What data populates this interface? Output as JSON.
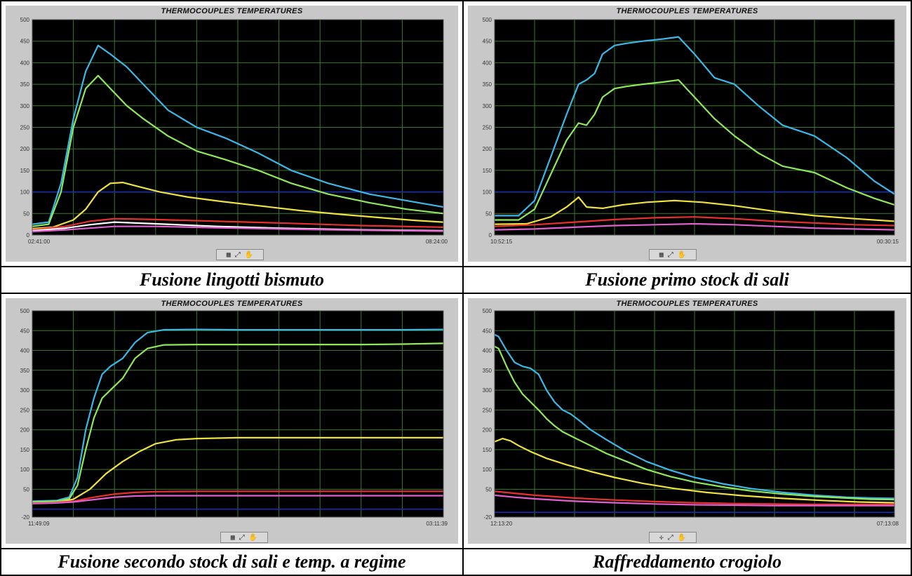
{
  "captions": [
    "Fusione lingotti bismuto",
    "Fusione primo stock di sali",
    "Fusione secondo stock di sali e temp. a regime",
    "Raffreddamento crogiolo"
  ],
  "colors": {
    "cyan": "#3ab8e8",
    "green": "#8ee85a",
    "yellow": "#f0e040",
    "red": "#e83030",
    "magenta": "#e060d0",
    "white": "#ffffff",
    "blue": "#1030c0",
    "grid": "#3a7a2a",
    "plot_bg": "#000000"
  },
  "controls_icon": "cursor-palette-icon",
  "chart_data": [
    {
      "type": "line",
      "title": "THERMOCOUPLES TEMPERATURES",
      "ylim": [
        0,
        500
      ],
      "yticks": [
        0,
        50,
        100,
        150,
        200,
        250,
        300,
        350,
        400,
        450,
        500
      ],
      "xlim": [
        0,
        100
      ],
      "x_start_label": "02:41:00",
      "x_end_label": "08:24:00",
      "grid": true,
      "reference_line": 100,
      "series": [
        {
          "color": "cyan",
          "x": [
            0,
            4,
            7,
            10,
            13,
            16,
            19,
            23,
            27,
            33,
            40,
            47,
            55,
            63,
            72,
            82,
            91,
            100
          ],
          "values": [
            25,
            30,
            120,
            270,
            380,
            440,
            420,
            390,
            350,
            290,
            250,
            225,
            190,
            150,
            120,
            95,
            80,
            65
          ]
        },
        {
          "color": "green",
          "x": [
            0,
            4,
            7,
            10,
            13,
            16,
            19,
            23,
            27,
            33,
            40,
            47,
            55,
            63,
            72,
            82,
            91,
            100
          ],
          "values": [
            20,
            25,
            100,
            250,
            340,
            370,
            340,
            300,
            270,
            230,
            195,
            175,
            150,
            120,
            95,
            75,
            60,
            50
          ]
        },
        {
          "color": "yellow",
          "x": [
            0,
            5,
            10,
            13,
            16,
            19,
            22,
            26,
            31,
            38,
            46,
            55,
            65,
            75,
            85,
            93,
            100
          ],
          "values": [
            15,
            18,
            35,
            60,
            100,
            120,
            122,
            112,
            100,
            88,
            78,
            68,
            57,
            48,
            40,
            34,
            30
          ]
        },
        {
          "color": "red",
          "x": [
            0,
            8,
            14,
            20,
            30,
            45,
            60,
            80,
            100
          ],
          "values": [
            12,
            20,
            32,
            38,
            36,
            32,
            28,
            22,
            18
          ]
        },
        {
          "color": "white",
          "x": [
            0,
            8,
            14,
            20,
            30,
            45,
            60,
            80,
            100
          ],
          "values": [
            10,
            16,
            24,
            30,
            26,
            20,
            16,
            12,
            10
          ]
        },
        {
          "color": "magenta",
          "x": [
            0,
            8,
            14,
            20,
            30,
            45,
            60,
            80,
            100
          ],
          "values": [
            8,
            12,
            16,
            20,
            20,
            17,
            14,
            11,
            9
          ]
        }
      ]
    },
    {
      "type": "line",
      "title": "THERMOCOUPLES TEMPERATURES",
      "ylim": [
        0,
        500
      ],
      "yticks": [
        0,
        50,
        100,
        150,
        200,
        250,
        300,
        350,
        400,
        450,
        500
      ],
      "xlim": [
        0,
        100
      ],
      "x_start_label": "10:52:15",
      "x_end_label": "00:30:15",
      "grid": true,
      "reference_line": 100,
      "series": [
        {
          "color": "cyan",
          "x": [
            0,
            6,
            10,
            14,
            18,
            21,
            23,
            25,
            27,
            30,
            33,
            37,
            42,
            46,
            50,
            55,
            60,
            66,
            72,
            80,
            88,
            95,
            100
          ],
          "values": [
            45,
            45,
            80,
            180,
            280,
            350,
            360,
            375,
            420,
            440,
            445,
            450,
            455,
            460,
            420,
            365,
            350,
            300,
            255,
            230,
            180,
            125,
            95
          ]
        },
        {
          "color": "green",
          "x": [
            0,
            6,
            10,
            14,
            18,
            21,
            23,
            25,
            27,
            30,
            33,
            37,
            42,
            46,
            50,
            55,
            60,
            66,
            72,
            80,
            88,
            95,
            100
          ],
          "values": [
            35,
            35,
            60,
            140,
            220,
            260,
            255,
            280,
            320,
            340,
            345,
            350,
            355,
            360,
            320,
            270,
            230,
            190,
            160,
            145,
            110,
            85,
            70
          ]
        },
        {
          "color": "yellow",
          "x": [
            0,
            8,
            14,
            18,
            20,
            21,
            23,
            27,
            32,
            38,
            45,
            52,
            60,
            70,
            80,
            90,
            100
          ],
          "values": [
            25,
            26,
            42,
            65,
            80,
            88,
            65,
            62,
            70,
            76,
            80,
            76,
            68,
            55,
            45,
            38,
            32
          ]
        },
        {
          "color": "red",
          "x": [
            0,
            10,
            20,
            30,
            40,
            50,
            60,
            70,
            80,
            90,
            100
          ],
          "values": [
            20,
            24,
            30,
            36,
            40,
            42,
            38,
            32,
            28,
            24,
            22
          ]
        },
        {
          "color": "magenta",
          "x": [
            0,
            10,
            20,
            30,
            40,
            50,
            60,
            70,
            80,
            90,
            100
          ],
          "values": [
            12,
            14,
            18,
            22,
            24,
            26,
            24,
            20,
            16,
            14,
            12
          ]
        }
      ]
    },
    {
      "type": "line",
      "title": "THERMOCOUPLES TEMPERATURES",
      "ylim": [
        -20,
        500
      ],
      "yticks": [
        -20,
        50,
        100,
        150,
        200,
        250,
        300,
        350,
        400,
        450,
        500
      ],
      "xlim": [
        0,
        100
      ],
      "x_start_label": "11:49:09",
      "x_end_label": "03:11:39",
      "grid": true,
      "reference_line": 0,
      "series": [
        {
          "color": "cyan",
          "x": [
            0,
            6,
            9,
            11,
            13,
            15,
            17,
            19,
            22,
            25,
            28,
            32,
            40,
            50,
            60,
            70,
            80,
            90,
            100
          ],
          "values": [
            20,
            22,
            30,
            80,
            200,
            280,
            340,
            360,
            380,
            420,
            445,
            452,
            453,
            452,
            452,
            452,
            452,
            452,
            453
          ]
        },
        {
          "color": "green",
          "x": [
            0,
            6,
            9,
            11,
            13,
            15,
            17,
            19,
            22,
            25,
            28,
            32,
            40,
            50,
            60,
            70,
            80,
            90,
            100
          ],
          "values": [
            18,
            20,
            26,
            60,
            150,
            230,
            280,
            300,
            330,
            380,
            405,
            414,
            415,
            415,
            415,
            415,
            415,
            416,
            418
          ]
        },
        {
          "color": "yellow",
          "x": [
            0,
            6,
            10,
            14,
            18,
            22,
            26,
            30,
            35,
            40,
            50,
            60,
            70,
            80,
            90,
            100
          ],
          "values": [
            15,
            16,
            25,
            50,
            90,
            120,
            145,
            165,
            175,
            178,
            180,
            180,
            180,
            180,
            180,
            180
          ]
        },
        {
          "color": "red",
          "x": [
            0,
            5,
            10,
            15,
            20,
            25,
            30,
            40,
            60,
            80,
            100
          ],
          "values": [
            15,
            16,
            20,
            30,
            38,
            42,
            44,
            45,
            45,
            45,
            45
          ]
        },
        {
          "color": "magenta",
          "x": [
            0,
            5,
            10,
            15,
            20,
            25,
            30,
            40,
            60,
            80,
            100
          ],
          "values": [
            14,
            15,
            18,
            24,
            30,
            33,
            34,
            34,
            34,
            34,
            34
          ]
        }
      ]
    },
    {
      "type": "line",
      "title": "THERMOCOUPLES TEMPERATURES",
      "ylim": [
        -20,
        500
      ],
      "yticks": [
        -20,
        50,
        100,
        150,
        200,
        250,
        300,
        350,
        400,
        450,
        500
      ],
      "xlim": [
        0,
        100
      ],
      "x_start_label": "12:13:20",
      "x_end_label": "07:13:08",
      "grid": true,
      "reference_line": -8,
      "series": [
        {
          "color": "cyan",
          "x": [
            0,
            1,
            3,
            5,
            7,
            9,
            11,
            13,
            15,
            17,
            19,
            21,
            24,
            28,
            33,
            38,
            44,
            50,
            57,
            64,
            72,
            80,
            88,
            94,
            100
          ],
          "values": [
            440,
            435,
            400,
            370,
            360,
            355,
            340,
            300,
            270,
            250,
            240,
            225,
            200,
            175,
            145,
            120,
            98,
            80,
            64,
            52,
            42,
            35,
            30,
            28,
            27
          ]
        },
        {
          "color": "green",
          "x": [
            0,
            1,
            3,
            5,
            7,
            9,
            11,
            13,
            15,
            17,
            19,
            21,
            24,
            28,
            33,
            38,
            44,
            50,
            57,
            64,
            72,
            80,
            88,
            94,
            100
          ],
          "values": [
            410,
            405,
            360,
            320,
            290,
            270,
            250,
            228,
            210,
            195,
            185,
            175,
            160,
            140,
            120,
            100,
            82,
            68,
            56,
            46,
            38,
            32,
            28,
            25,
            24
          ]
        },
        {
          "color": "yellow",
          "x": [
            0,
            2,
            4,
            6,
            9,
            13,
            18,
            24,
            30,
            37,
            45,
            53,
            62,
            72,
            82,
            91,
            100
          ],
          "values": [
            170,
            178,
            172,
            160,
            145,
            128,
            112,
            95,
            80,
            65,
            52,
            42,
            34,
            27,
            22,
            18,
            16
          ]
        },
        {
          "color": "red",
          "x": [
            0,
            5,
            10,
            20,
            30,
            40,
            50,
            60,
            70,
            80,
            90,
            100
          ],
          "values": [
            45,
            40,
            35,
            28,
            23,
            19,
            16,
            14,
            13,
            12,
            12,
            12
          ]
        },
        {
          "color": "magenta",
          "x": [
            0,
            5,
            10,
            20,
            30,
            40,
            50,
            60,
            70,
            80,
            90,
            100
          ],
          "values": [
            35,
            30,
            26,
            20,
            16,
            13,
            11,
            10,
            9,
            9,
            9,
            9
          ]
        }
      ]
    }
  ]
}
